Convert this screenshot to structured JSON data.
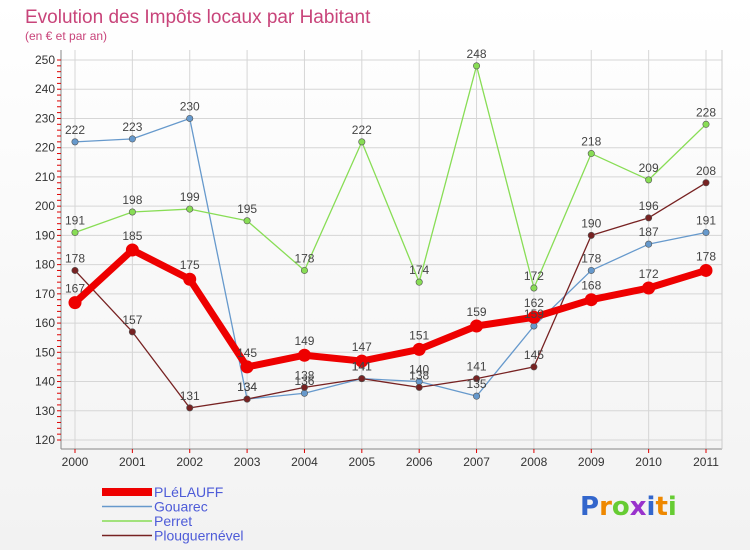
{
  "colors": {
    "plelauff": "#ee0000",
    "gouarec": "#6699cc",
    "perret": "#88dd55",
    "plouguernevel": "#772222",
    "title": "#c8447a",
    "legend_text": "#4d5bd8",
    "logo_blue": "#3366cc",
    "logo_orange": "#ee8800",
    "logo_green": "#66cc33",
    "logo_purple": "#9933cc"
  },
  "logo": "Proxiti",
  "chart_data": {
    "type": "line",
    "title": "Evolution des Impôts locaux par Habitant",
    "subtitle": "(en € et par an)",
    "xlabel": "",
    "ylabel": "",
    "ylim": [
      120,
      250
    ],
    "yticks": [
      120,
      130,
      140,
      150,
      160,
      170,
      180,
      190,
      200,
      210,
      220,
      230,
      240,
      250
    ],
    "categories": [
      "2000",
      "2001",
      "2002",
      "2003",
      "2004",
      "2005",
      "2006",
      "2007",
      "2008",
      "2009",
      "2010",
      "2011"
    ],
    "grid": true,
    "legend_position": "bottom-left",
    "series": [
      {
        "name": "Gouarec",
        "color_key": "gouarec",
        "values": [
          222,
          223,
          230,
          134,
          136,
          141,
          140,
          135,
          159,
          178,
          187,
          191
        ]
      },
      {
        "name": "Perret",
        "color_key": "perret",
        "values": [
          191,
          198,
          199,
          195,
          178,
          222,
          174,
          248,
          172,
          218,
          209,
          228
        ]
      },
      {
        "name": "Plouguernével",
        "color_key": "plouguernevel",
        "values": [
          178,
          157,
          131,
          134,
          138,
          141,
          138,
          141,
          145,
          190,
          196,
          208
        ]
      },
      {
        "name": "PLéLAUFF",
        "color_key": "plelauff",
        "values": [
          167,
          185,
          175,
          145,
          149,
          147,
          151,
          159,
          162,
          168,
          172,
          178
        ]
      }
    ],
    "legend_order": [
      "PLéLAUFF",
      "Gouarec",
      "Perret",
      "Plouguernével"
    ]
  }
}
